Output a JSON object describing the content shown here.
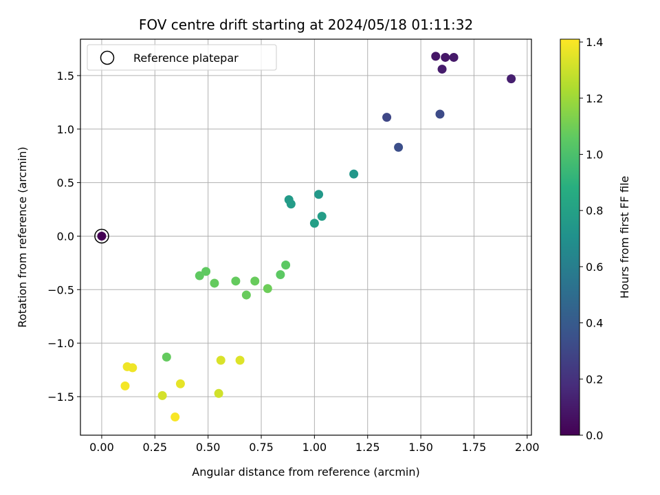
{
  "chart_data": {
    "type": "scatter",
    "title": "FOV centre drift starting at 2024/05/18 01:11:32",
    "xlabel": "Angular distance from reference (arcmin)",
    "ylabel": "Rotation from reference (arcmin)",
    "xlim": [
      -0.1,
      2.02
    ],
    "ylim": [
      -1.86,
      1.84
    ],
    "x_ticks": [
      0.0,
      0.25,
      0.5,
      0.75,
      1.0,
      1.25,
      1.5,
      1.75,
      2.0
    ],
    "x_tick_labels": [
      "0.00",
      "0.25",
      "0.50",
      "0.75",
      "1.00",
      "1.25",
      "1.50",
      "1.75",
      "2.00"
    ],
    "y_ticks": [
      -1.5,
      -1.0,
      -0.5,
      0.0,
      0.5,
      1.0,
      1.5
    ],
    "y_tick_labels": [
      "−1.5",
      "−1.0",
      "−0.5",
      "0.0",
      "0.5",
      "1.0",
      "1.5"
    ],
    "grid": true,
    "legend": {
      "placement": "top-left",
      "entries": [
        "Reference platepar"
      ]
    },
    "reference_point": {
      "x": 0.0,
      "y": 0.0,
      "hours": 0.0
    },
    "colorbar": {
      "label": "Hours from first FF file",
      "range": [
        0.0,
        1.41
      ],
      "ticks": [
        0.0,
        0.2,
        0.4,
        0.6,
        0.8,
        1.0,
        1.2,
        1.4
      ],
      "tick_labels": [
        "0.0",
        "0.2",
        "0.4",
        "0.6",
        "0.8",
        "1.0",
        "1.2",
        "1.4"
      ],
      "colormap": "viridis"
    },
    "points": [
      {
        "x": 1.57,
        "y": 1.68,
        "hours": 0.08
      },
      {
        "x": 1.615,
        "y": 1.67,
        "hours": 0.09
      },
      {
        "x": 1.655,
        "y": 1.67,
        "hours": 0.1
      },
      {
        "x": 1.6,
        "y": 1.56,
        "hours": 0.11
      },
      {
        "x": 1.925,
        "y": 1.47,
        "hours": 0.12
      },
      {
        "x": 1.34,
        "y": 1.11,
        "hours": 0.3
      },
      {
        "x": 1.59,
        "y": 1.14,
        "hours": 0.32
      },
      {
        "x": 1.395,
        "y": 0.83,
        "hours": 0.34
      },
      {
        "x": 1.185,
        "y": 0.58,
        "hours": 0.74
      },
      {
        "x": 1.02,
        "y": 0.39,
        "hours": 0.75
      },
      {
        "x": 0.88,
        "y": 0.34,
        "hours": 0.76
      },
      {
        "x": 0.89,
        "y": 0.3,
        "hours": 0.77
      },
      {
        "x": 1.035,
        "y": 0.185,
        "hours": 0.78
      },
      {
        "x": 1.0,
        "y": 0.12,
        "hours": 0.79
      },
      {
        "x": 0.865,
        "y": -0.27,
        "hours": 1.05
      },
      {
        "x": 0.84,
        "y": -0.36,
        "hours": 1.05
      },
      {
        "x": 0.46,
        "y": -0.37,
        "hours": 1.06
      },
      {
        "x": 0.49,
        "y": -0.33,
        "hours": 1.06
      },
      {
        "x": 0.53,
        "y": -0.44,
        "hours": 1.07
      },
      {
        "x": 0.63,
        "y": -0.42,
        "hours": 1.07
      },
      {
        "x": 0.72,
        "y": -0.42,
        "hours": 1.08
      },
      {
        "x": 0.68,
        "y": -0.55,
        "hours": 1.08
      },
      {
        "x": 0.78,
        "y": -0.49,
        "hours": 1.09
      },
      {
        "x": 0.305,
        "y": -1.13,
        "hours": 1.07
      },
      {
        "x": 0.12,
        "y": -1.22,
        "hours": 1.38
      },
      {
        "x": 0.145,
        "y": -1.23,
        "hours": 1.38
      },
      {
        "x": 0.11,
        "y": -1.4,
        "hours": 1.39
      },
      {
        "x": 0.285,
        "y": -1.49,
        "hours": 1.32
      },
      {
        "x": 0.37,
        "y": -1.38,
        "hours": 1.36
      },
      {
        "x": 0.345,
        "y": -1.69,
        "hours": 1.4
      },
      {
        "x": 0.56,
        "y": -1.16,
        "hours": 1.33
      },
      {
        "x": 0.65,
        "y": -1.16,
        "hours": 1.34
      },
      {
        "x": 0.55,
        "y": -1.47,
        "hours": 1.31
      }
    ]
  }
}
